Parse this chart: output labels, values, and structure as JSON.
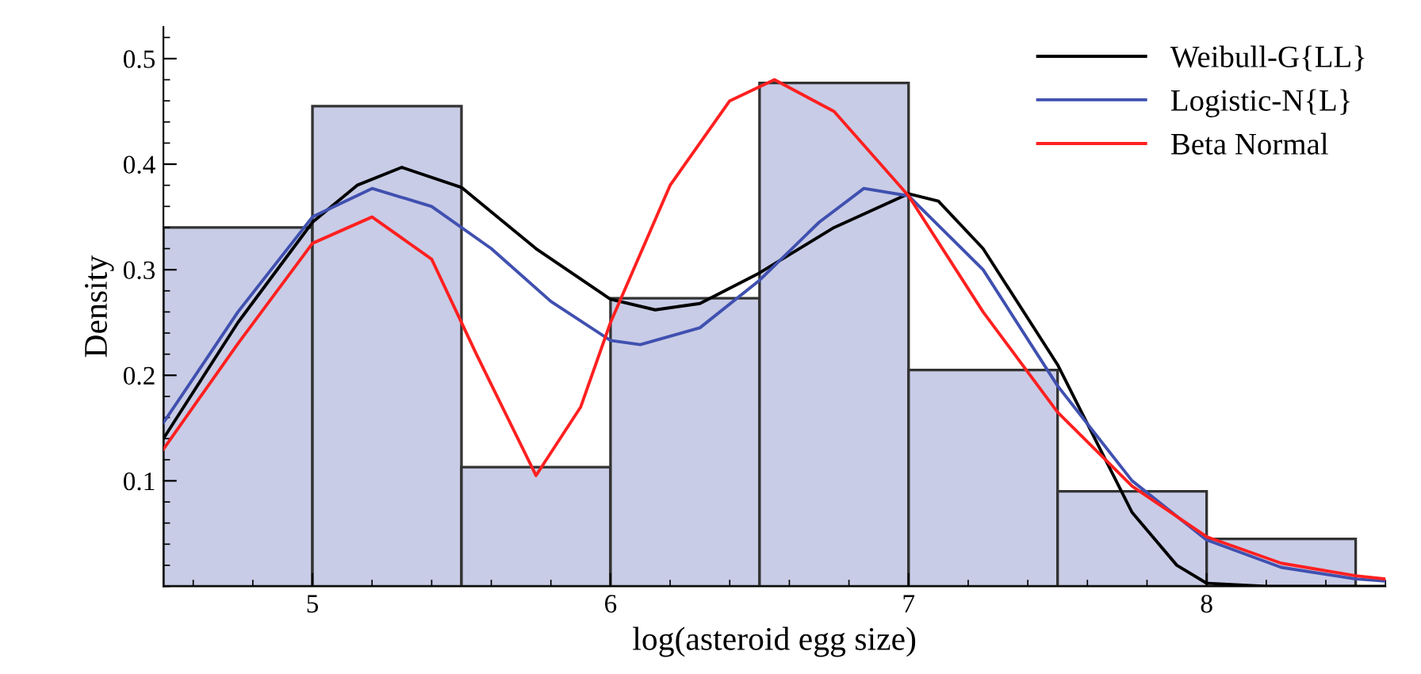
{
  "chart_data": {
    "type": "histogram",
    "xlabel": "log(asteroid egg size)",
    "ylabel": "Density",
    "bins": [
      4.5,
      5,
      5.5,
      6,
      6.5,
      7,
      7.5,
      8,
      8.5
    ],
    "values": [
      0.34,
      0.455,
      0.113,
      0.273,
      0.477,
      0.205,
      0.09,
      0.045
    ],
    "color": "#c8cce6",
    "series": [
      {
        "name": "Weibull-G{LL}",
        "type": "line",
        "color": "#000000",
        "x": [
          4.5,
          4.75,
          5.0,
          5.15,
          5.3,
          5.5,
          5.75,
          6.0,
          6.15,
          6.3,
          6.5,
          6.75,
          7.0,
          7.1,
          7.25,
          7.5,
          7.75,
          7.9,
          8.0,
          8.2,
          8.6
        ],
        "values": [
          0.14,
          0.25,
          0.345,
          0.38,
          0.397,
          0.378,
          0.32,
          0.272,
          0.262,
          0.268,
          0.297,
          0.34,
          0.372,
          0.365,
          0.32,
          0.21,
          0.07,
          0.02,
          0.003,
          0.0,
          0.0
        ]
      },
      {
        "name": "Logistic-N{L}",
        "type": "line",
        "color": "#4050b0",
        "x": [
          4.5,
          4.75,
          5.0,
          5.2,
          5.4,
          5.6,
          5.8,
          6.0,
          6.1,
          6.3,
          6.5,
          6.7,
          6.85,
          7.0,
          7.25,
          7.5,
          7.75,
          8.0,
          8.25,
          8.5,
          8.6
        ],
        "values": [
          0.155,
          0.26,
          0.35,
          0.377,
          0.36,
          0.32,
          0.27,
          0.233,
          0.229,
          0.245,
          0.29,
          0.345,
          0.377,
          0.37,
          0.3,
          0.19,
          0.1,
          0.044,
          0.018,
          0.007,
          0.005
        ]
      },
      {
        "name": "Beta Normal",
        "type": "line",
        "color": "#ff2020",
        "x": [
          4.5,
          4.75,
          5.0,
          5.2,
          5.4,
          5.55,
          5.75,
          5.9,
          6.0,
          6.2,
          6.4,
          6.55,
          6.75,
          7.0,
          7.25,
          7.5,
          7.75,
          8.0,
          8.25,
          8.5,
          8.6
        ],
        "values": [
          0.13,
          0.23,
          0.325,
          0.35,
          0.31,
          0.22,
          0.105,
          0.17,
          0.25,
          0.38,
          0.46,
          0.48,
          0.45,
          0.37,
          0.26,
          0.165,
          0.095,
          0.047,
          0.022,
          0.01,
          0.007
        ]
      }
    ],
    "xlim": [
      4.5,
      8.6
    ],
    "ylim": [
      0,
      0.53
    ],
    "xticks": [
      5,
      6,
      7,
      8
    ],
    "yticks": [
      0.1,
      0.2,
      0.3,
      0.4,
      0.5
    ],
    "legend": "top right",
    "grid": false
  }
}
